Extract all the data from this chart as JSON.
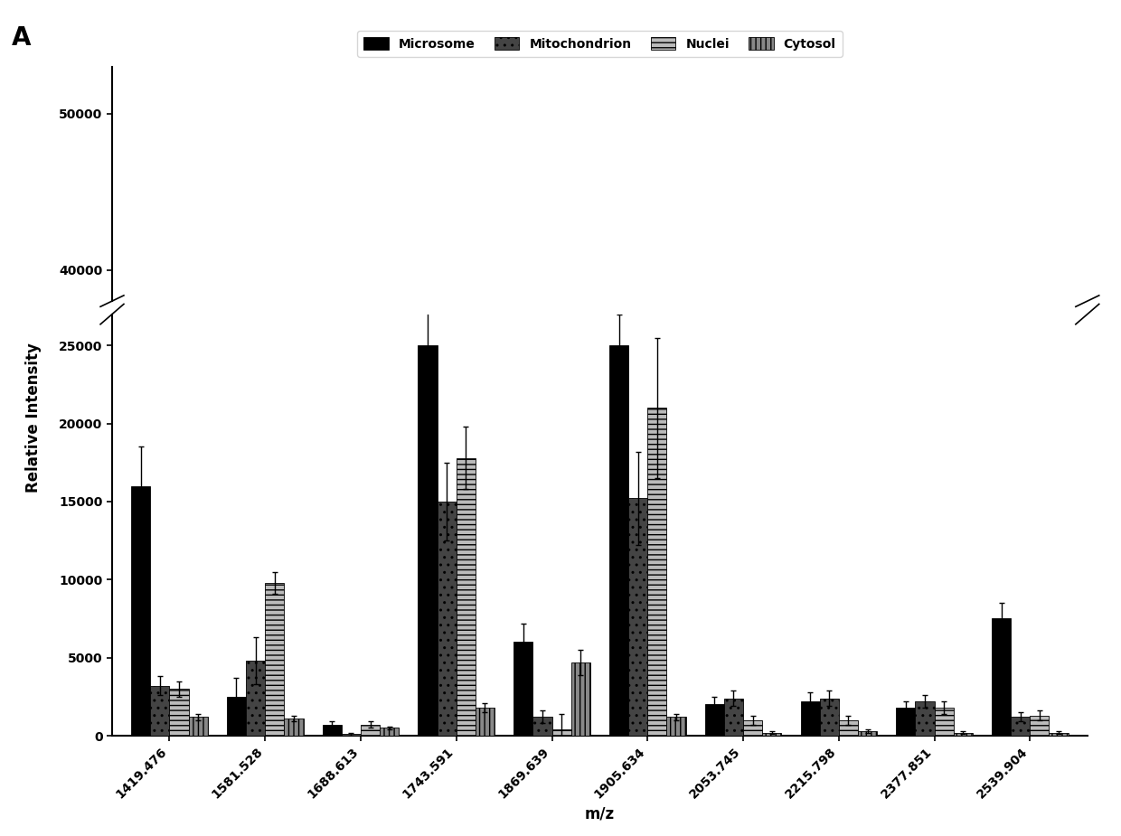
{
  "categories": [
    "1419.476",
    "1581.528",
    "1688.613",
    "1743.591",
    "1869.639",
    "1905.634",
    "2053.745",
    "2215.798",
    "2377.851",
    "2539.904"
  ],
  "series": {
    "Microsome": [
      16000,
      2500,
      700,
      25000,
      6000,
      25000,
      2000,
      2200,
      1800,
      7500
    ],
    "Mitochondrion": [
      3200,
      4800,
      100,
      15000,
      1200,
      15200,
      2400,
      2400,
      2200,
      1200
    ],
    "Nuclei": [
      3000,
      9800,
      700,
      17800,
      400,
      21000,
      1000,
      1000,
      1800,
      1300
    ],
    "Cytosol": [
      1200,
      1100,
      500,
      1800,
      4700,
      1200,
      200,
      300,
      200,
      200
    ]
  },
  "errors": {
    "Microsome": [
      2500,
      1200,
      200,
      3500,
      1200,
      2000,
      500,
      600,
      400,
      1000
    ],
    "Mitochondrion": [
      600,
      1500,
      100,
      2500,
      400,
      3000,
      500,
      500,
      400,
      300
    ],
    "Nuclei": [
      500,
      700,
      200,
      2000,
      1000,
      4500,
      300,
      300,
      400,
      300
    ],
    "Cytosol": [
      200,
      200,
      100,
      300,
      800,
      200,
      100,
      100,
      100,
      100
    ]
  },
  "colors": {
    "Microsome": "#000000",
    "Mitochondrion": "#444444",
    "Nuclei": "#bbbbbb",
    "Cytosol": "#888888"
  },
  "hatches": {
    "Microsome": "",
    "Mitochondrion": "..",
    "Nuclei": "---",
    "Cytosol": "|||"
  },
  "xlabel": "m/z",
  "ylabel": "Relative Intensity",
  "bar_width": 0.2,
  "yticks_lower": [
    0,
    5000,
    10000,
    15000,
    20000,
    25000
  ],
  "yticks_upper": [
    40000,
    50000
  ],
  "ylim_lower": [
    0,
    27000
  ],
  "ylim_upper": [
    38000,
    53000
  ]
}
